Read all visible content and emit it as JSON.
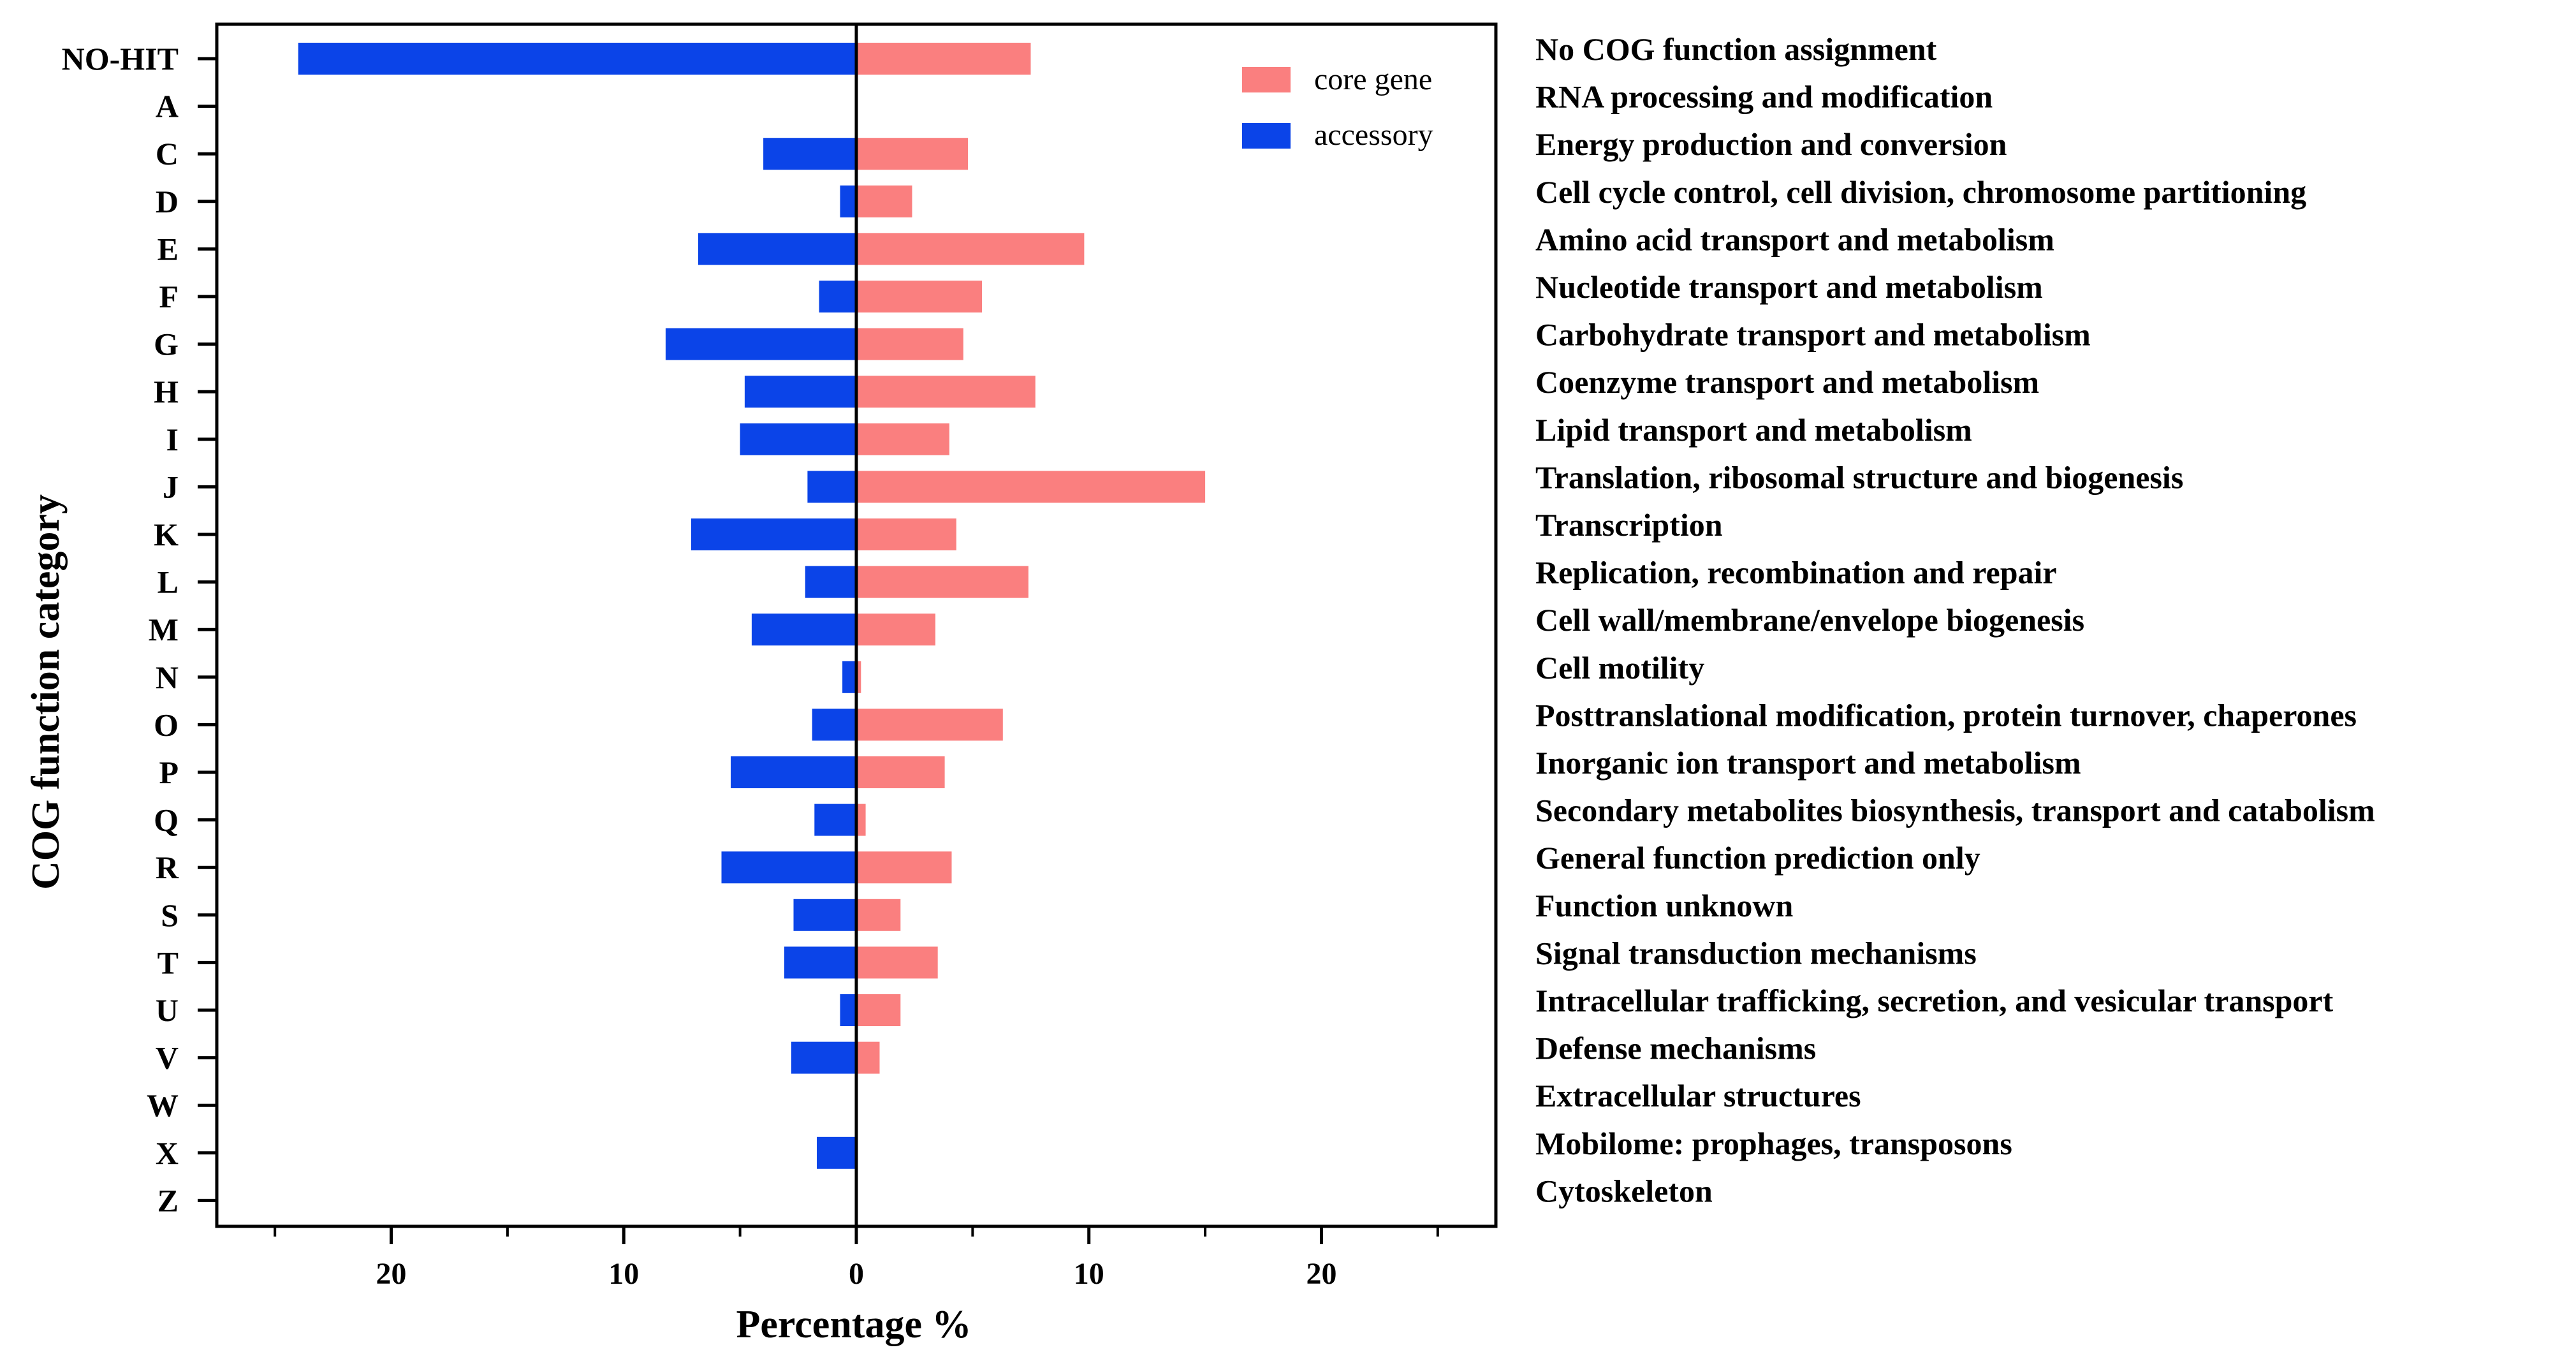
{
  "chart_data": {
    "type": "bar",
    "orientation": "horizontal-diverging",
    "xlabel": "Percentage %",
    "ylabel": "COG function category",
    "xlim": [
      -27.5,
      27.5
    ],
    "x_ticks": [
      -20,
      -10,
      0,
      10,
      20
    ],
    "x_tick_labels": [
      "20",
      "10",
      "0",
      "10",
      "20"
    ],
    "legend_position": "top-right",
    "categories": [
      "NO-HIT",
      "A",
      "C",
      "D",
      "E",
      "F",
      "G",
      "H",
      "I",
      "J",
      "K",
      "L",
      "M",
      "N",
      "O",
      "P",
      "Q",
      "R",
      "S",
      "T",
      "U",
      "V",
      "W",
      "X",
      "Z"
    ],
    "descriptions": [
      "No COG function assignment",
      "RNA processing and modification",
      "Energy production and conversion",
      "Cell cycle control, cell division, chromosome partitioning",
      "Amino acid transport and metabolism",
      "Nucleotide transport and metabolism",
      "Carbohydrate transport and metabolism",
      "Coenzyme transport and metabolism",
      "Lipid transport and metabolism",
      "Translation, ribosomal structure and biogenesis",
      "Transcription",
      "Replication, recombination and repair",
      "Cell wall/membrane/envelope biogenesis",
      "Cell motility",
      "Posttranslational modification, protein turnover, chaperones",
      "Inorganic ion transport and metabolism",
      "Secondary metabolites biosynthesis, transport and catabolism",
      "General function prediction only",
      "Function unknown",
      "Signal transduction mechanisms",
      "Intracellular trafficking, secretion, and vesicular transport",
      "Defense mechanisms",
      "Extracellular structures",
      "Mobilome: prophages, transposons",
      "Cytoskeleton"
    ],
    "series": [
      {
        "name": "core gene",
        "color": "#FA7F7F",
        "direction": "right",
        "values": [
          7.5,
          0,
          4.8,
          2.4,
          9.8,
          5.4,
          4.6,
          7.7,
          4.0,
          15.0,
          4.3,
          7.4,
          3.4,
          0.2,
          6.3,
          3.8,
          0.4,
          4.1,
          1.9,
          3.5,
          1.9,
          1.0,
          0,
          0,
          0
        ]
      },
      {
        "name": "accessory",
        "color": "#0B44E8",
        "direction": "left",
        "values": [
          24.0,
          0,
          4.0,
          0.7,
          6.8,
          1.6,
          8.2,
          4.8,
          5.0,
          2.1,
          7.1,
          2.2,
          4.5,
          0.6,
          1.9,
          5.4,
          1.8,
          5.8,
          2.7,
          3.1,
          0.7,
          2.8,
          0,
          1.7,
          0
        ]
      }
    ]
  }
}
